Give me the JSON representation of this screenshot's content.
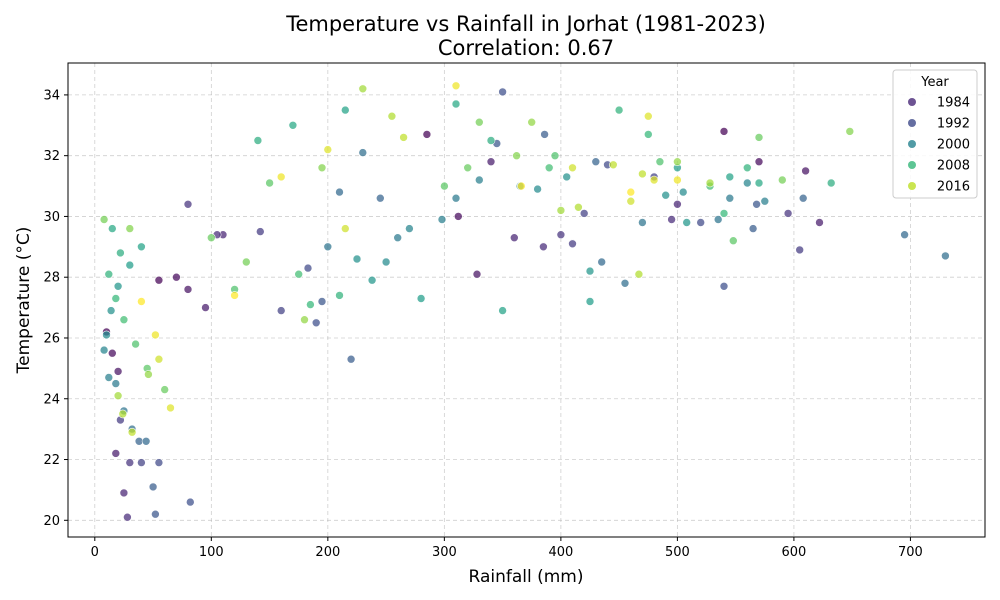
{
  "chart_data": {
    "type": "scatter",
    "title": "Temperature vs Rainfall in Jorhat (1981-2023)",
    "subtitle": "Correlation: 0.67",
    "xlabel": "Rainfall (mm)",
    "ylabel": "Temperature (°C)",
    "xlim": [
      -23,
      764
    ],
    "ylim": [
      19.45,
      35.05
    ],
    "xticks": [
      0,
      100,
      200,
      300,
      400,
      500,
      600,
      700
    ],
    "yticks": [
      20,
      22,
      24,
      26,
      28,
      30,
      32,
      34
    ],
    "grid": true,
    "legend": {
      "title": "Year",
      "placement": "top-right",
      "entries": [
        {
          "label": "1984",
          "color": "#482878"
        },
        {
          "label": "1992",
          "color": "#3e4a89"
        },
        {
          "label": "2000",
          "color": "#26828e"
        },
        {
          "label": "2008",
          "color": "#35b779"
        },
        {
          "label": "2016",
          "color": "#bddf26"
        }
      ]
    },
    "colormap": "viridis",
    "year_range": [
      1981,
      2023
    ],
    "points": [
      [
        10,
        26.2,
        1981
      ],
      [
        15,
        25.5,
        1982
      ],
      [
        20,
        24.9,
        1983
      ],
      [
        18,
        22.2,
        1984
      ],
      [
        25,
        20.9,
        1985
      ],
      [
        28,
        20.1,
        1986
      ],
      [
        30,
        21.9,
        1987
      ],
      [
        22,
        23.3,
        1988
      ],
      [
        40,
        21.9,
        1989
      ],
      [
        55,
        21.9,
        1990
      ],
      [
        82,
        20.6,
        1991
      ],
      [
        52,
        20.2,
        1992
      ],
      [
        50,
        21.1,
        1993
      ],
      [
        38,
        22.6,
        1994
      ],
      [
        44,
        22.6,
        1995
      ],
      [
        32,
        23.0,
        1996
      ],
      [
        25,
        23.6,
        1997
      ],
      [
        18,
        24.5,
        1998
      ],
      [
        12,
        24.7,
        1999
      ],
      [
        8,
        25.6,
        2000
      ],
      [
        10,
        26.1,
        2001
      ],
      [
        14,
        26.9,
        2002
      ],
      [
        20,
        27.7,
        2003
      ],
      [
        30,
        28.4,
        2004
      ],
      [
        40,
        29.0,
        2005
      ],
      [
        15,
        29.6,
        2006
      ],
      [
        22,
        28.8,
        2007
      ],
      [
        12,
        28.1,
        2008
      ],
      [
        18,
        27.3,
        2009
      ],
      [
        25,
        26.6,
        2010
      ],
      [
        35,
        25.8,
        2011
      ],
      [
        45,
        25.0,
        2012
      ],
      [
        60,
        24.3,
        2013
      ],
      [
        8,
        29.9,
        2014
      ],
      [
        30,
        29.6,
        2015
      ],
      [
        46,
        24.8,
        2016
      ],
      [
        20,
        24.1,
        2017
      ],
      [
        24,
        23.5,
        2018
      ],
      [
        32,
        22.9,
        2019
      ],
      [
        55,
        25.3,
        2020
      ],
      [
        65,
        23.7,
        2021
      ],
      [
        52,
        26.1,
        2022
      ],
      [
        40,
        27.2,
        2023
      ],
      [
        55,
        27.9,
        1981
      ],
      [
        70,
        28.0,
        1982
      ],
      [
        80,
        27.6,
        1983
      ],
      [
        95,
        27.0,
        1984
      ],
      [
        110,
        29.4,
        1985
      ],
      [
        105,
        29.4,
        1986
      ],
      [
        80,
        30.4,
        1987
      ],
      [
        142,
        29.5,
        1988
      ],
      [
        160,
        26.9,
        1989
      ],
      [
        183,
        28.3,
        1990
      ],
      [
        190,
        26.5,
        1991
      ],
      [
        195,
        27.2,
        1992
      ],
      [
        220,
        25.3,
        1993
      ],
      [
        245,
        30.6,
        1994
      ],
      [
        210,
        30.8,
        1995
      ],
      [
        230,
        32.1,
        1996
      ],
      [
        200,
        29.0,
        1997
      ],
      [
        260,
        29.3,
        1998
      ],
      [
        298,
        29.9,
        1999
      ],
      [
        270,
        29.6,
        2000
      ],
      [
        250,
        28.5,
        2001
      ],
      [
        225,
        28.6,
        2002
      ],
      [
        238,
        27.9,
        2003
      ],
      [
        280,
        27.3,
        2004
      ],
      [
        215,
        33.5,
        2005
      ],
      [
        170,
        33.0,
        2006
      ],
      [
        140,
        32.5,
        2007
      ],
      [
        210,
        27.4,
        2008
      ],
      [
        185,
        27.1,
        2009
      ],
      [
        175,
        28.1,
        2010
      ],
      [
        120,
        27.6,
        2011
      ],
      [
        150,
        31.1,
        2012
      ],
      [
        100,
        29.3,
        2013
      ],
      [
        130,
        28.5,
        2014
      ],
      [
        195,
        31.6,
        2015
      ],
      [
        180,
        26.6,
        2016
      ],
      [
        230,
        34.2,
        2017
      ],
      [
        255,
        33.3,
        2018
      ],
      [
        265,
        32.6,
        2019
      ],
      [
        215,
        29.6,
        2020
      ],
      [
        200,
        32.2,
        2021
      ],
      [
        160,
        31.3,
        2022
      ],
      [
        120,
        27.4,
        2023
      ],
      [
        285,
        32.7,
        1981
      ],
      [
        312,
        30.0,
        1982
      ],
      [
        328,
        28.1,
        1983
      ],
      [
        340,
        31.8,
        1984
      ],
      [
        360,
        29.3,
        1985
      ],
      [
        385,
        29.0,
        1986
      ],
      [
        400,
        29.4,
        1987
      ],
      [
        410,
        29.1,
        1988
      ],
      [
        420,
        30.1,
        1989
      ],
      [
        440,
        31.7,
        1990
      ],
      [
        350,
        34.1,
        1991
      ],
      [
        345,
        32.4,
        1992
      ],
      [
        386,
        32.7,
        1993
      ],
      [
        430,
        31.8,
        1994
      ],
      [
        435,
        28.5,
        1995
      ],
      [
        455,
        27.8,
        1996
      ],
      [
        470,
        29.8,
        1997
      ],
      [
        310,
        30.6,
        1998
      ],
      [
        330,
        31.2,
        1999
      ],
      [
        365,
        31.0,
        2000
      ],
      [
        380,
        30.9,
        2001
      ],
      [
        405,
        31.3,
        2002
      ],
      [
        425,
        28.2,
        2003
      ],
      [
        425,
        27.2,
        2004
      ],
      [
        350,
        26.9,
        2005
      ],
      [
        310,
        33.7,
        2006
      ],
      [
        340,
        32.5,
        2007
      ],
      [
        450,
        33.5,
        2008
      ],
      [
        475,
        32.7,
        2009
      ],
      [
        390,
        31.6,
        2010
      ],
      [
        395,
        32.0,
        2011
      ],
      [
        300,
        31.0,
        2012
      ],
      [
        320,
        31.6,
        2013
      ],
      [
        330,
        33.1,
        2014
      ],
      [
        362,
        32.0,
        2015
      ],
      [
        375,
        33.1,
        2016
      ],
      [
        400,
        30.2,
        2017
      ],
      [
        415,
        30.3,
        2018
      ],
      [
        445,
        31.7,
        2019
      ],
      [
        460,
        30.5,
        2020
      ],
      [
        475,
        33.3,
        2021
      ],
      [
        310,
        34.3,
        2022
      ],
      [
        366,
        31.0,
        2023
      ],
      [
        540,
        32.8,
        1981
      ],
      [
        570,
        31.8,
        1982
      ],
      [
        610,
        31.5,
        1983
      ],
      [
        622,
        29.8,
        1984
      ],
      [
        500,
        30.4,
        1985
      ],
      [
        495,
        29.9,
        1986
      ],
      [
        595,
        30.1,
        1987
      ],
      [
        605,
        28.9,
        1988
      ],
      [
        480,
        31.3,
        1989
      ],
      [
        520,
        29.8,
        1990
      ],
      [
        540,
        27.7,
        1991
      ],
      [
        568,
        30.4,
        1992
      ],
      [
        565,
        29.6,
        1993
      ],
      [
        608,
        30.6,
        1994
      ],
      [
        695,
        29.4,
        1995
      ],
      [
        730,
        28.7,
        1996
      ],
      [
        535,
        29.9,
        1997
      ],
      [
        545,
        30.6,
        1998
      ],
      [
        575,
        30.5,
        1999
      ],
      [
        560,
        31.1,
        2000
      ],
      [
        505,
        30.8,
        2001
      ],
      [
        490,
        30.7,
        2002
      ],
      [
        508,
        29.8,
        2003
      ],
      [
        500,
        31.6,
        2004
      ],
      [
        545,
        31.3,
        2005
      ],
      [
        570,
        31.1,
        2006
      ],
      [
        632,
        31.1,
        2007
      ],
      [
        560,
        31.6,
        2008
      ],
      [
        540,
        30.1,
        2009
      ],
      [
        528,
        31.0,
        2010
      ],
      [
        485,
        31.8,
        2011
      ],
      [
        548,
        29.2,
        2012
      ],
      [
        570,
        32.6,
        2013
      ],
      [
        590,
        31.2,
        2014
      ],
      [
        648,
        32.8,
        2015
      ],
      [
        500,
        31.8,
        2016
      ],
      [
        528,
        31.1,
        2017
      ],
      [
        467,
        28.1,
        2018
      ],
      [
        470,
        31.4,
        2019
      ],
      [
        410,
        31.6,
        2020
      ],
      [
        480,
        31.2,
        2021
      ],
      [
        500,
        31.2,
        2022
      ],
      [
        460,
        30.8,
        2023
      ]
    ]
  }
}
